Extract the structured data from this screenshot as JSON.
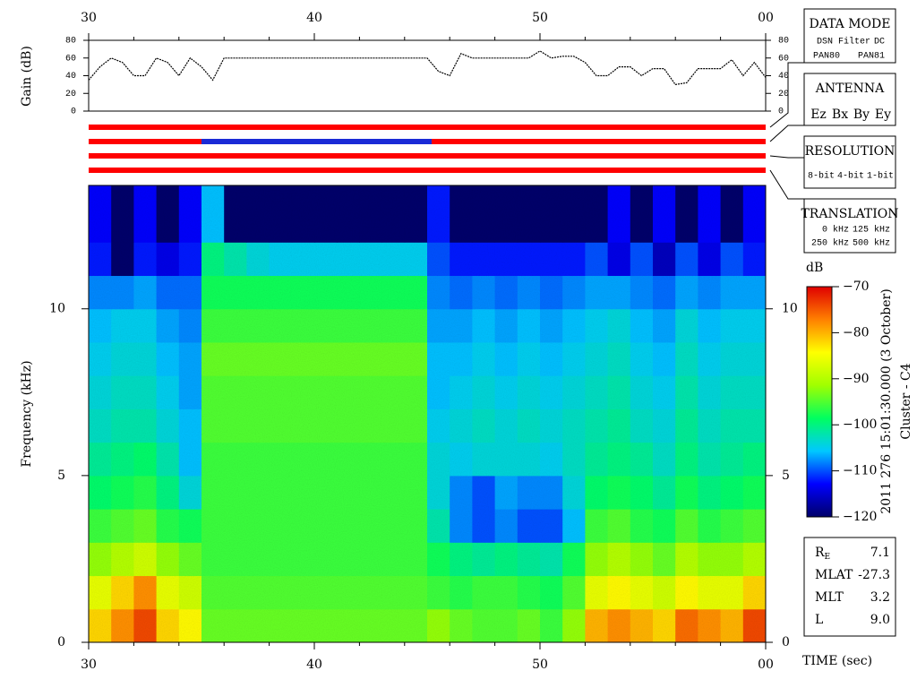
{
  "chart_data": [
    {
      "type": "line",
      "ylabel": "Gain (dB)",
      "xlim": [
        30,
        60
      ],
      "ylim": [
        0,
        80
      ],
      "yticks": [
        0,
        20,
        40,
        60,
        80
      ],
      "xticks": [
        30,
        40,
        50,
        {
          "value": 60,
          "label": "00"
        }
      ],
      "xminorticks": [
        32,
        34,
        36,
        38,
        42,
        44,
        46,
        48,
        52,
        54,
        56,
        58
      ],
      "color": "#000000",
      "x": [
        30,
        30.5,
        31,
        31.5,
        32,
        32.5,
        33,
        33.5,
        34,
        34.5,
        35,
        35.5,
        36,
        36.5,
        37,
        37.5,
        38,
        38.5,
        39,
        39.5,
        40,
        40.5,
        41,
        41.5,
        42,
        42.5,
        43,
        43.5,
        44,
        44.5,
        45,
        45.5,
        46,
        46.5,
        47,
        47.5,
        48,
        48.5,
        49,
        49.5,
        50,
        50.5,
        51,
        51.5,
        52,
        52.5,
        53,
        53.5,
        54,
        54.5,
        55,
        55.5,
        56,
        56.5,
        57,
        57.5,
        58,
        58.5,
        59,
        59.5,
        60
      ],
      "values": [
        35,
        50,
        60,
        55,
        40,
        40,
        60,
        55,
        40,
        60,
        50,
        35,
        60,
        60,
        60,
        60,
        60,
        60,
        60,
        60,
        60,
        60,
        60,
        60,
        60,
        60,
        60,
        60,
        60,
        60,
        60,
        45,
        40,
        65,
        60,
        60,
        60,
        60,
        60,
        60,
        68,
        60,
        62,
        62,
        55,
        40,
        40,
        50,
        50,
        40,
        48,
        48,
        30,
        32,
        48,
        48,
        48,
        58,
        40,
        55,
        38
      ]
    },
    {
      "type": "timeline",
      "xlim": [
        30,
        60
      ],
      "rows": [
        {
          "segments": [
            {
              "start": 30,
              "end": 60,
              "color": "#ff0000"
            }
          ]
        },
        {
          "segments": [
            {
              "start": 30,
              "end": 35,
              "color": "#ff0000"
            },
            {
              "start": 35,
              "end": 45.2,
              "color": "#1a2ad6"
            },
            {
              "start": 45.2,
              "end": 60,
              "color": "#ff0000"
            }
          ]
        },
        {
          "segments": [
            {
              "start": 30,
              "end": 60,
              "color": "#ff0000"
            }
          ]
        },
        {
          "segments": [
            {
              "start": 30,
              "end": 60,
              "color": "#ff0000"
            }
          ]
        }
      ]
    },
    {
      "type": "heatmap",
      "ylabel": "Frequency (kHz)",
      "xlabel": "TIME (sec)",
      "xlim": [
        30,
        60
      ],
      "ylim": [
        0,
        13.7
      ],
      "xticks": [
        30,
        40,
        50,
        {
          "value": 60,
          "label": "00"
        }
      ],
      "xminorticks": [
        32,
        34,
        36,
        38,
        42,
        44,
        46,
        48,
        52,
        54,
        56,
        58
      ],
      "yticks": [
        0,
        5,
        10
      ],
      "x_edges": [
        30,
        31,
        32,
        33,
        34,
        35,
        36,
        37,
        38,
        39,
        40,
        41,
        42,
        43,
        44,
        45,
        46,
        47,
        48,
        49,
        50,
        51,
        52,
        53,
        54,
        55,
        56,
        57,
        58,
        59,
        60
      ],
      "y_edges": [
        0,
        1,
        2,
        3,
        4,
        5,
        6,
        7,
        8,
        9,
        10,
        11,
        12,
        13,
        13.7
      ],
      "zlabel": "dB",
      "zlim": [
        -120,
        -70
      ],
      "zticks": [
        {
          "value": -120,
          "label": "−120"
        },
        {
          "value": -110,
          "label": "−110"
        },
        {
          "value": -100,
          "label": "−100"
        },
        {
          "value": -90,
          "label": "−90"
        },
        {
          "value": -80,
          "label": "−80"
        },
        {
          "value": -70,
          "label": "−70"
        }
      ],
      "colormap": [
        "#00006a",
        "#0000ff",
        "#00c8ff",
        "#00ff60",
        "#a0ff00",
        "#ffff00",
        "#ff8000",
        "#e00000"
      ],
      "annotations": [
        "2011 276 15:01:30.000 (3 October)",
        "Cluster - C4"
      ],
      "values": [
        [
          -82,
          -78,
          -74,
          -82,
          -84,
          -94,
          -94,
          -94,
          -94,
          -94,
          -94,
          -94,
          -94,
          -94,
          -94,
          -92,
          -94,
          -95,
          -95,
          -94,
          -96,
          -92,
          -80,
          -78,
          -80,
          -82,
          -76,
          -78,
          -80,
          -74
        ],
        [
          -86,
          -82,
          -78,
          -86,
          -88,
          -95,
          -95,
          -95,
          -95,
          -95,
          -95,
          -95,
          -95,
          -95,
          -95,
          -96,
          -97,
          -96,
          -96,
          -97,
          -98,
          -95,
          -86,
          -84,
          -86,
          -88,
          -84,
          -86,
          -86,
          -82
        ],
        [
          -92,
          -90,
          -88,
          -92,
          -94,
          -96,
          -96,
          -96,
          -96,
          -96,
          -96,
          -96,
          -96,
          -96,
          -96,
          -98,
          -100,
          -101,
          -100,
          -101,
          -102,
          -98,
          -92,
          -90,
          -92,
          -94,
          -90,
          -92,
          -92,
          -90
        ],
        [
          -96,
          -95,
          -94,
          -97,
          -98,
          -96,
          -96,
          -96,
          -96,
          -96,
          -96,
          -96,
          -96,
          -96,
          -96,
          -102,
          -108,
          -110,
          -108,
          -110,
          -110,
          -106,
          -96,
          -95,
          -97,
          -98,
          -95,
          -97,
          -96,
          -95
        ],
        [
          -99,
          -98,
          -97,
          -100,
          -104,
          -96,
          -96,
          -96,
          -96,
          -96,
          -96,
          -96,
          -96,
          -96,
          -96,
          -104,
          -108,
          -110,
          -107,
          -108,
          -108,
          -104,
          -99,
          -98,
          -99,
          -101,
          -98,
          -100,
          -99,
          -98
        ],
        [
          -101,
          -100,
          -99,
          -102,
          -106,
          -96,
          -96,
          -96,
          -96,
          -96,
          -96,
          -96,
          -96,
          -96,
          -96,
          -104,
          -105,
          -104,
          -104,
          -104,
          -105,
          -103,
          -101,
          -100,
          -101,
          -103,
          -100,
          -102,
          -101,
          -100
        ],
        [
          -103,
          -102,
          -102,
          -104,
          -106,
          -95,
          -95,
          -95,
          -95,
          -95,
          -95,
          -95,
          -95,
          -95,
          -95,
          -105,
          -104,
          -103,
          -104,
          -103,
          -104,
          -103,
          -102,
          -101,
          -103,
          -104,
          -101,
          -103,
          -102,
          -102
        ],
        [
          -104,
          -103,
          -103,
          -105,
          -107,
          -95,
          -95,
          -95,
          -95,
          -95,
          -95,
          -95,
          -95,
          -95,
          -95,
          -106,
          -105,
          -104,
          -105,
          -104,
          -105,
          -104,
          -103,
          -102,
          -104,
          -105,
          -102,
          -104,
          -103,
          -103
        ],
        [
          -105,
          -104,
          -104,
          -106,
          -107,
          -94,
          -94,
          -94,
          -94,
          -94,
          -94,
          -94,
          -94,
          -94,
          -94,
          -106,
          -106,
          -105,
          -106,
          -105,
          -106,
          -105,
          -104,
          -103,
          -105,
          -106,
          -103,
          -105,
          -104,
          -104
        ],
        [
          -106,
          -105,
          -105,
          -107,
          -108,
          -96,
          -96,
          -96,
          -96,
          -96,
          -96,
          -96,
          -96,
          -96,
          -96,
          -107,
          -107,
          -106,
          -107,
          -106,
          -107,
          -106,
          -105,
          -104,
          -106,
          -107,
          -104,
          -106,
          -105,
          -105
        ],
        [
          -108,
          -108,
          -107,
          -109,
          -109,
          -98,
          -98,
          -98,
          -98,
          -98,
          -98,
          -98,
          -98,
          -98,
          -98,
          -108,
          -109,
          -108,
          -109,
          -108,
          -109,
          -108,
          -107,
          -107,
          -108,
          -109,
          -107,
          -108,
          -107,
          -107
        ],
        [
          -112,
          -120,
          -112,
          -114,
          -112,
          -100,
          -102,
          -104,
          -105,
          -105,
          -105,
          -105,
          -105,
          -105,
          -105,
          -110,
          -112,
          -112,
          -112,
          -112,
          -112,
          -112,
          -110,
          -114,
          -110,
          -116,
          -110,
          -114,
          -110,
          -112
        ],
        [
          -113,
          -120,
          -113,
          -120,
          -113,
          -106,
          -120,
          -120,
          -120,
          -120,
          -120,
          -120,
          -120,
          -120,
          -120,
          -112,
          -120,
          -120,
          -120,
          -120,
          -120,
          -120,
          -120,
          -113,
          -120,
          -113,
          -120,
          -113,
          -120,
          -113
        ],
        [
          -113,
          -120,
          -113,
          -120,
          -113,
          -106,
          -120,
          -120,
          -120,
          -120,
          -120,
          -120,
          -120,
          -120,
          -120,
          -112,
          -120,
          -120,
          -120,
          -120,
          -120,
          -120,
          -120,
          -113,
          -120,
          -113,
          -120,
          -113,
          -120,
          -113
        ]
      ]
    }
  ],
  "panels": {
    "data_mode": {
      "title": "DATA MODE",
      "items": [
        {
          "text": "DSN",
          "color": "#ff0000"
        },
        {
          "text": "Filter",
          "color": "#00c000"
        },
        {
          "text": "DC",
          "color": "#0000ff"
        },
        {
          "text": "PAN80",
          "color": "#000000"
        },
        {
          "text": "PAN81",
          "color": "#00c8e0"
        }
      ]
    },
    "antenna": {
      "title": "ANTENNA",
      "items": [
        {
          "text": "Ez",
          "color": "#ff0000"
        },
        {
          "text": "Bx",
          "color": "#00c000"
        },
        {
          "text": "By",
          "color": "#0000ff"
        },
        {
          "text": "Ey",
          "color": "#000000"
        }
      ]
    },
    "resolution": {
      "title": "RESOLUTION",
      "items": [
        {
          "text": "8-bit",
          "color": "#ff0000"
        },
        {
          "text": "4-bit",
          "color": "#00c000"
        },
        {
          "text": "1-bit",
          "color": "#0000ff"
        }
      ]
    },
    "translation": {
      "title": "TRANSLATION",
      "items": [
        {
          "text": "0 kHz",
          "color": "#ff0000"
        },
        {
          "text": "125 kHz",
          "color": "#00c000"
        },
        {
          "text": "250 kHz",
          "color": "#0000ff"
        },
        {
          "text": "500 kHz",
          "color": "#000000"
        }
      ]
    }
  },
  "info": [
    {
      "label": "R",
      "sub": "E",
      "value": "7.1"
    },
    {
      "label": "MLAT",
      "value": "-27.3"
    },
    {
      "label": "MLT",
      "value": "3.2"
    },
    {
      "label": "L",
      "value": "9.0"
    }
  ]
}
